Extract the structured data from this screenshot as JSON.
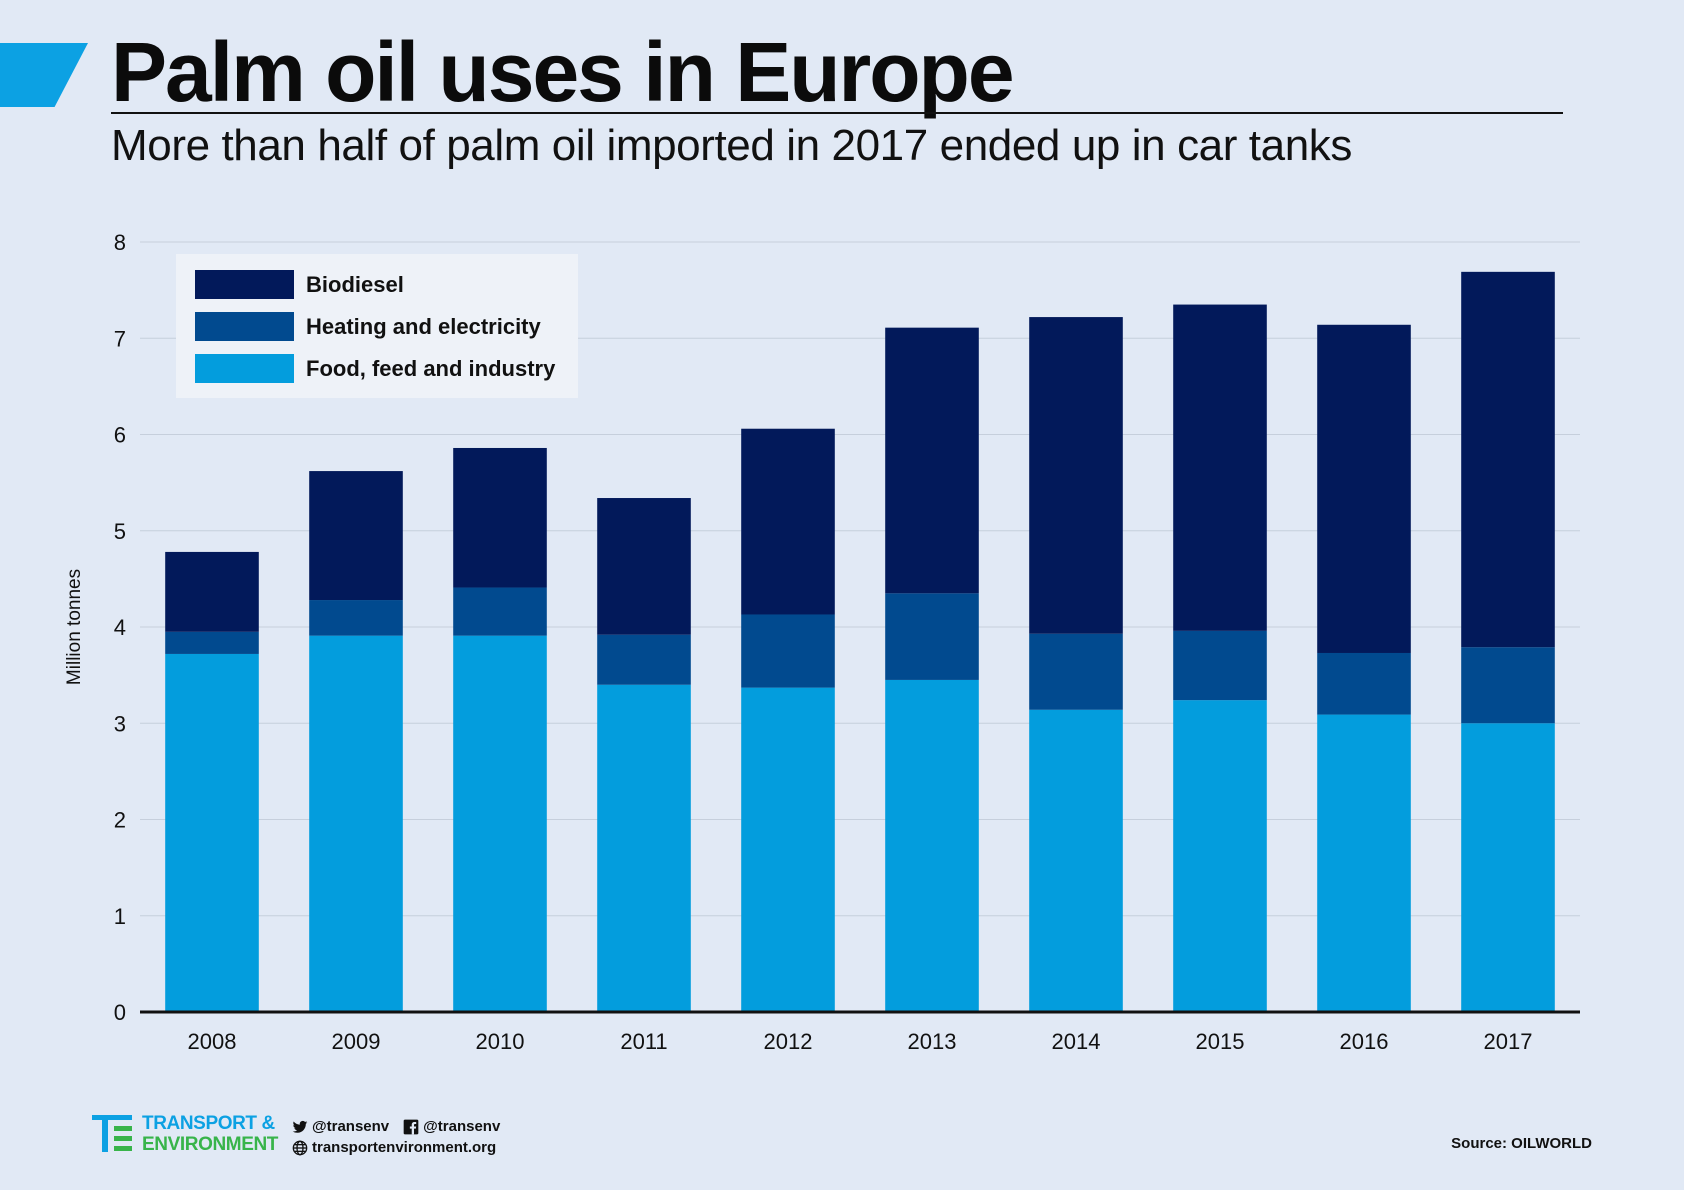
{
  "header": {
    "title": "Palm oil uses in Europe",
    "subtitle": "More than half of palm oil imported in 2017 ended up in car tanks"
  },
  "colors": {
    "background": "#e1e9f5",
    "accent": "#0ca1e3",
    "biodiesel": "#02195a",
    "heating": "#014a8f",
    "food": "#039ddd",
    "grid": "#c6cfdc",
    "axis": "#111111",
    "legend_bg": "#eef2f8"
  },
  "chart_data": {
    "type": "bar",
    "stacked": true,
    "title": "Palm oil uses in Europe",
    "xlabel": "",
    "ylabel": "Million tonnes",
    "ylim": [
      0,
      8
    ],
    "yticks": [
      "0",
      "1",
      "2",
      "3",
      "4",
      "5",
      "6",
      "7",
      "8"
    ],
    "grid": true,
    "legend_position": "top-left",
    "categories": [
      "2008",
      "2009",
      "2010",
      "2011",
      "2012",
      "2013",
      "2014",
      "2015",
      "2016",
      "2017"
    ],
    "series": [
      {
        "name": "Food, feed and industry",
        "color_key": "food",
        "values": [
          3.72,
          3.91,
          3.91,
          3.4,
          3.37,
          3.45,
          3.14,
          3.24,
          3.09,
          3.0
        ]
      },
      {
        "name": "Heating and electricity",
        "color_key": "heating",
        "values": [
          0.23,
          0.37,
          0.5,
          0.52,
          0.76,
          0.9,
          0.79,
          0.72,
          0.64,
          0.79
        ]
      },
      {
        "name": "Biodiesel",
        "color_key": "biodiesel",
        "values": [
          0.83,
          1.34,
          1.45,
          1.42,
          1.93,
          2.76,
          3.29,
          3.39,
          3.41,
          3.9
        ]
      }
    ],
    "legend_order": [
      "Biodiesel",
      "Heating and electricity",
      "Food, feed and industry"
    ]
  },
  "footer": {
    "logo_line1": "TRANSPORT &",
    "logo_line2": "ENVIRONMENT",
    "twitter": "@transenv",
    "facebook": "@transenv",
    "website": "transportenvironment.org",
    "source": "Source: OILWORLD"
  }
}
